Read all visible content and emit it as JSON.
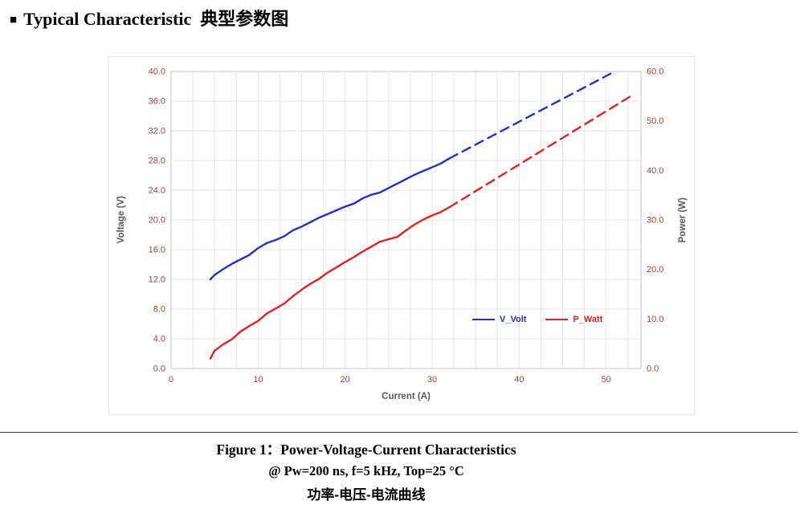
{
  "header": {
    "bullet": "■",
    "title": "Typical Characteristic  典型参数图"
  },
  "chart_data": {
    "type": "line",
    "xlabel": "Current (A)",
    "ylabel_left": "Voltage (V)",
    "ylabel_right": "Power (W)",
    "xlim": [
      0,
      54
    ],
    "ylim_left": [
      0,
      40
    ],
    "ylim_right": [
      0,
      60
    ],
    "x_ticks": [
      0,
      10,
      20,
      30,
      40,
      50
    ],
    "x_tick_labels": [
      "0",
      "10",
      "20",
      "30",
      "40",
      "50"
    ],
    "y_left_ticks": [
      0,
      4,
      8,
      12,
      16,
      20,
      24,
      28,
      32,
      36,
      40
    ],
    "y_left_tick_labels": [
      "0.0",
      "4.0",
      "8.0",
      "12.0",
      "16.0",
      "20.0",
      "24.0",
      "28.0",
      "32.0",
      "36.0",
      "40.0"
    ],
    "y_right_ticks": [
      0,
      10,
      20,
      30,
      40,
      50,
      60
    ],
    "y_right_tick_labels": [
      "0.0",
      "10.0",
      "20.0",
      "30.0",
      "40.0",
      "50.0",
      "60.0"
    ],
    "grid": {
      "x_step": 2.5,
      "y_step": 4,
      "on": true
    },
    "legend_position": "inside lower-right",
    "colors": {
      "tick": "#9a453e",
      "axis_title": "#595959",
      "grid": "#e6e6e6",
      "border": "#c0c0c0"
    },
    "series": [
      {
        "name": "V_Volt",
        "color": "#2431c8",
        "axis": "left",
        "style": "solid then dashed extrapolation",
        "solid": [
          [
            4.5,
            12.0
          ],
          [
            5,
            12.6
          ],
          [
            6,
            13.4
          ],
          [
            7,
            14.1
          ],
          [
            8,
            14.7
          ],
          [
            9,
            15.3
          ],
          [
            10,
            16.2
          ],
          [
            11,
            16.9
          ],
          [
            12,
            17.3
          ],
          [
            13,
            17.8
          ],
          [
            14,
            18.6
          ],
          [
            15,
            19.1
          ],
          [
            16,
            19.7
          ],
          [
            17,
            20.3
          ],
          [
            18,
            20.8
          ],
          [
            19,
            21.3
          ],
          [
            20,
            21.8
          ],
          [
            21,
            22.2
          ],
          [
            22,
            22.9
          ],
          [
            23,
            23.4
          ],
          [
            24,
            23.7
          ],
          [
            25,
            24.3
          ],
          [
            26,
            24.9
          ],
          [
            27,
            25.5
          ],
          [
            28,
            26.1
          ],
          [
            29,
            26.6
          ],
          [
            30,
            27.1
          ],
          [
            31,
            27.6
          ],
          [
            32,
            28.3
          ]
        ],
        "dashed": [
          [
            32,
            28.3
          ],
          [
            50.5,
            39.7
          ]
        ]
      },
      {
        "name": "P_Watt",
        "color": "#e42320",
        "axis": "right",
        "style": "solid then dashed extrapolation",
        "solid": [
          [
            4.5,
            2.0
          ],
          [
            5,
            3.6
          ],
          [
            6,
            4.9
          ],
          [
            7,
            5.9
          ],
          [
            8,
            7.5
          ],
          [
            9,
            8.6
          ],
          [
            10,
            9.6
          ],
          [
            11,
            11.1
          ],
          [
            12,
            12.1
          ],
          [
            13,
            13.1
          ],
          [
            14,
            14.6
          ],
          [
            15,
            15.9
          ],
          [
            16,
            17.1
          ],
          [
            17,
            18.1
          ],
          [
            18,
            19.4
          ],
          [
            19,
            20.4
          ],
          [
            20,
            21.5
          ],
          [
            21,
            22.5
          ],
          [
            22,
            23.6
          ],
          [
            23,
            24.6
          ],
          [
            24,
            25.6
          ],
          [
            25,
            26.1
          ],
          [
            26,
            26.6
          ],
          [
            27,
            27.9
          ],
          [
            28,
            29.1
          ],
          [
            29,
            30.1
          ],
          [
            30,
            30.9
          ],
          [
            31,
            31.6
          ],
          [
            32,
            32.6
          ]
        ],
        "dashed": [
          [
            32,
            32.6
          ],
          [
            53,
            55.2
          ]
        ]
      }
    ]
  },
  "caption": {
    "line1": "Figure 1：Power-Voltage-Current Characteristics",
    "line2": "@ Pw=200 ns, f=5 kHz, Top=25 °C",
    "line3": "功率-电压-电流曲线"
  }
}
